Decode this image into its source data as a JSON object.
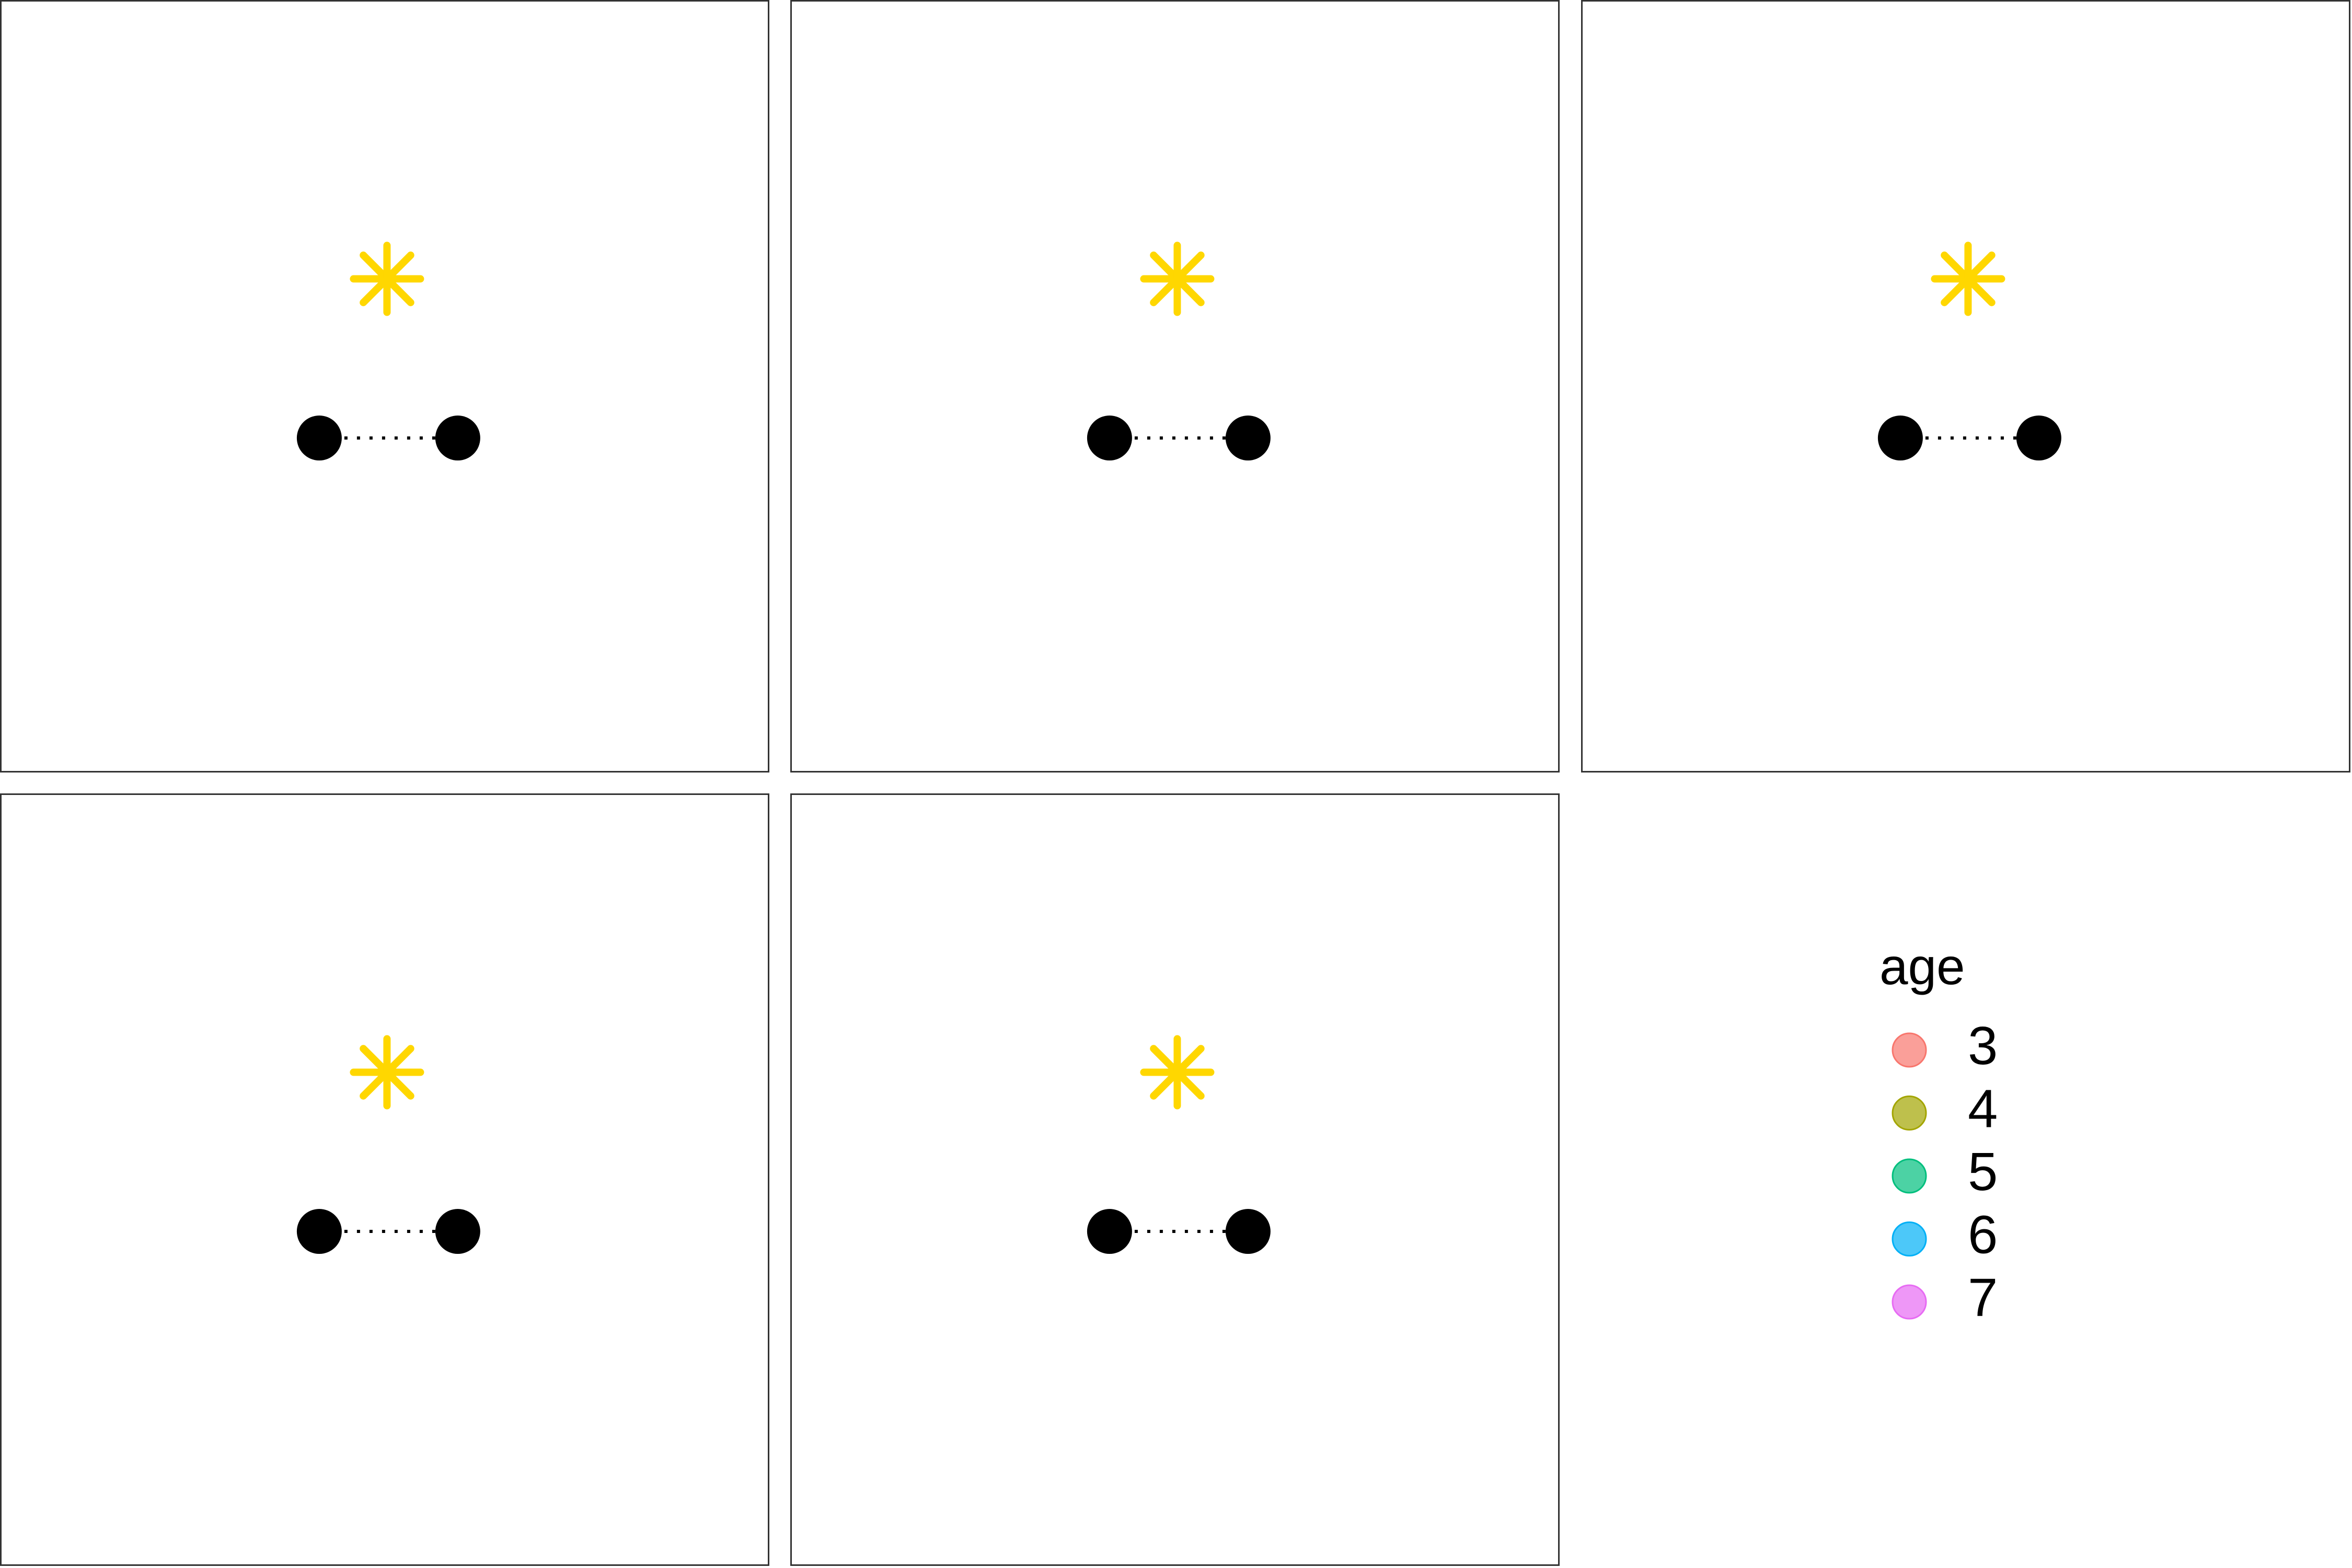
{
  "legend": {
    "title": "age",
    "items": [
      {
        "label": "3",
        "color": "#F8766D"
      },
      {
        "label": "4",
        "color": "#A3A500"
      },
      {
        "label": "5",
        "color": "#00BF7D"
      },
      {
        "label": "6",
        "color": "#00B0F6"
      },
      {
        "label": "7",
        "color": "#E76BF3"
      }
    ]
  }
}
